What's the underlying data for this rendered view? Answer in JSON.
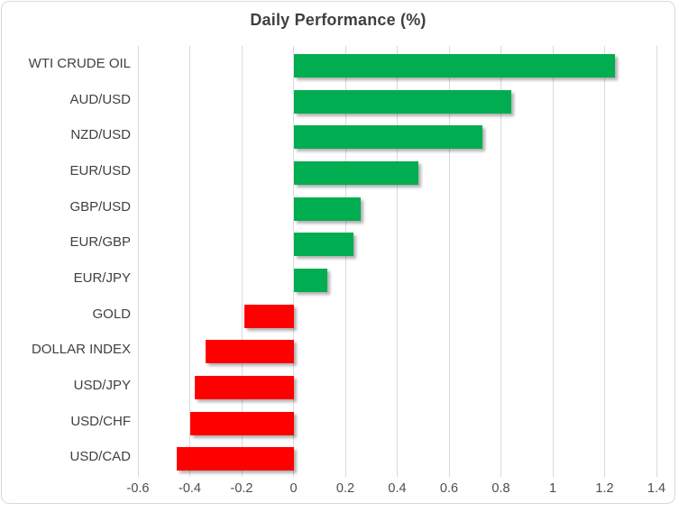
{
  "chart": {
    "title": "Daily Performance (%)"
  },
  "chart_data": {
    "type": "bar",
    "orientation": "horizontal",
    "title": "Daily Performance (%)",
    "categories": [
      "WTI CRUDE OIL",
      "AUD/USD",
      "NZD/USD",
      "EUR/USD",
      "GBP/USD",
      "EUR/GBP",
      "EUR/JPY",
      "GOLD",
      "DOLLAR INDEX",
      "USD/JPY",
      "USD/CHF",
      "USD/CAD"
    ],
    "values": [
      1.24,
      0.84,
      0.73,
      0.48,
      0.26,
      0.23,
      0.13,
      -0.19,
      -0.34,
      -0.38,
      -0.4,
      -0.45
    ],
    "xlabel": "",
    "ylabel": "",
    "xlim": [
      -0.6,
      1.4
    ],
    "tick_step": 0.2,
    "tick_labels": [
      "-0.6",
      "-0.4",
      "-0.2",
      "0",
      "0.2",
      "0.4",
      "0.6",
      "0.8",
      "1",
      "1.2",
      "1.4"
    ],
    "grid": true,
    "legend": false,
    "colors": {
      "positive_bar": "#00AD50",
      "negative_bar": "#FF0000",
      "gridline": "#D9D9D9",
      "chart_border": "#D9D9D9",
      "title_text": "#404040",
      "axis_text": "#4D4D4D",
      "background": "#FFFFFF"
    }
  }
}
